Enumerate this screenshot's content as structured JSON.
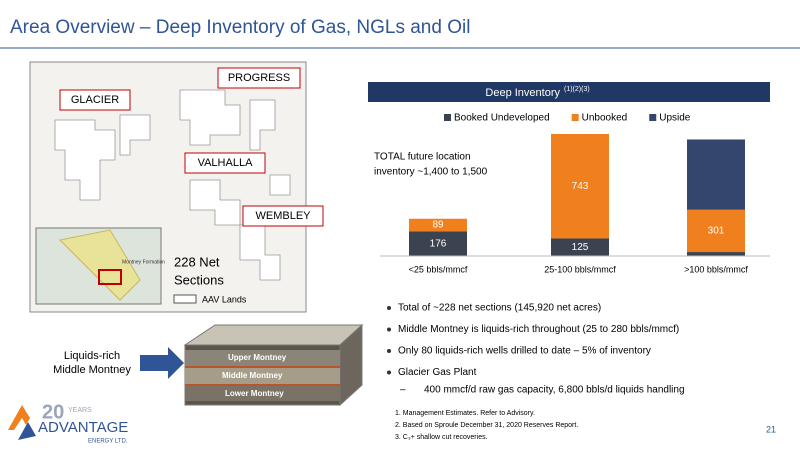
{
  "header": {
    "title": "Area Overview – Deep Inventory of Gas, NGLs and Oil",
    "page_number": "21"
  },
  "map": {
    "areas": [
      "GLACIER",
      "PROGRESS",
      "VALHALLA",
      "WEMBLEY"
    ],
    "sections": [
      "228 Net",
      "Sections"
    ],
    "legend": "AAV Lands",
    "inset_label": "Montney Formation"
  },
  "chart_data": {
    "type": "stacked_bar",
    "title": "Deep Inventory",
    "title_superscript": "(1)(2)(3)",
    "annotation": [
      "TOTAL future location",
      "inventory ~1,400 to 1,500"
    ],
    "categories": [
      "<25 bbls/mmcf",
      "25-100 bbls/mmcf",
      ">100 bbls/mmcf"
    ],
    "series": [
      {
        "name": "Booked Undeveloped",
        "color": "#3b4350",
        "values": [
          176,
          125,
          28
        ],
        "value_labels": [
          "176",
          "125",
          null
        ]
      },
      {
        "name": "Unbooked",
        "color": "#f07f1e",
        "values": [
          89,
          743,
          301
        ],
        "value_labels": [
          "89",
          "743",
          "301"
        ]
      },
      {
        "name": "Upside",
        "color": "#34466e",
        "values": [
          0,
          0,
          500
        ]
      }
    ]
  },
  "bullets": [
    "Total of ~228 net sections (145,920 net acres)",
    "Middle Montney is liquids-rich throughout (25 to 280 bbls/mmcf)",
    "Only 80 liquids-rich wells drilled to date – 5% of inventory",
    "Glacier Gas Plant"
  ],
  "sub_bullet": "400 mmcf/d raw gas capacity, 6,800 bbls/d liquids handling",
  "footnotes": [
    "1. Management Estimates. Refer to Advisory.",
    "2. Based on Sproule December 31, 2020 Reserves Report.",
    "3. C₃+ shallow cut recoveries."
  ],
  "callout": [
    "Liquids-rich",
    "Middle Montney"
  ],
  "cube_layers": [
    "Upper Montney",
    "Middle Montney",
    "Lower Montney"
  ],
  "logo": {
    "years": "20",
    "years_word": "YEARS",
    "name": "ADVANTAGE",
    "sub": "ENERGY LTD."
  }
}
